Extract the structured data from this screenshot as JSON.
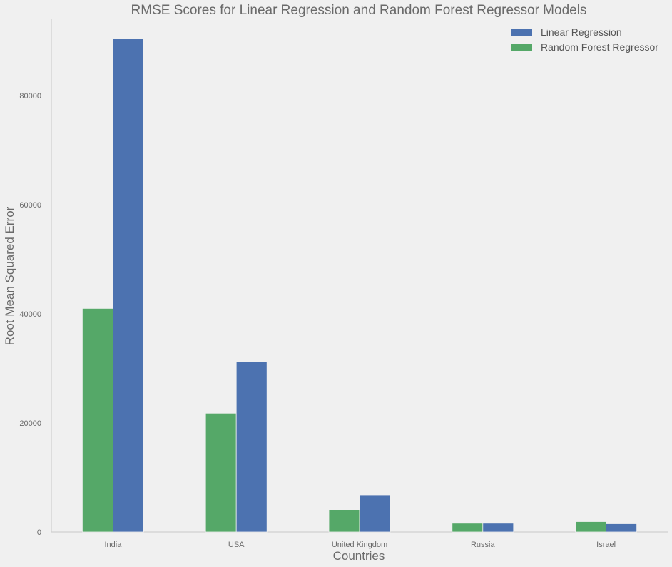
{
  "chart_data": {
    "type": "bar",
    "title": "RMSE Scores for Linear Regression and Random Forest Regressor Models",
    "xlabel": "Countries",
    "ylabel": "Root Mean Squared Error",
    "categories": [
      "India",
      "USA",
      "United Kingdom",
      "Russia",
      "Israel"
    ],
    "series": [
      {
        "name": "Random Forest Regressor",
        "color": "#55a868",
        "values": [
          41000,
          21800,
          4100,
          1600,
          1900
        ]
      },
      {
        "name": "Linear Regression",
        "color": "#4c72b0",
        "values": [
          90400,
          31200,
          6800,
          1600,
          1500
        ]
      }
    ],
    "legend_order": [
      "Linear Regression",
      "Random Forest Regressor"
    ],
    "yticks": [
      "0",
      "20000",
      "40000",
      "60000",
      "80000"
    ],
    "ylim": [
      0,
      94000
    ],
    "grid": false,
    "legend_position": "top-right"
  }
}
